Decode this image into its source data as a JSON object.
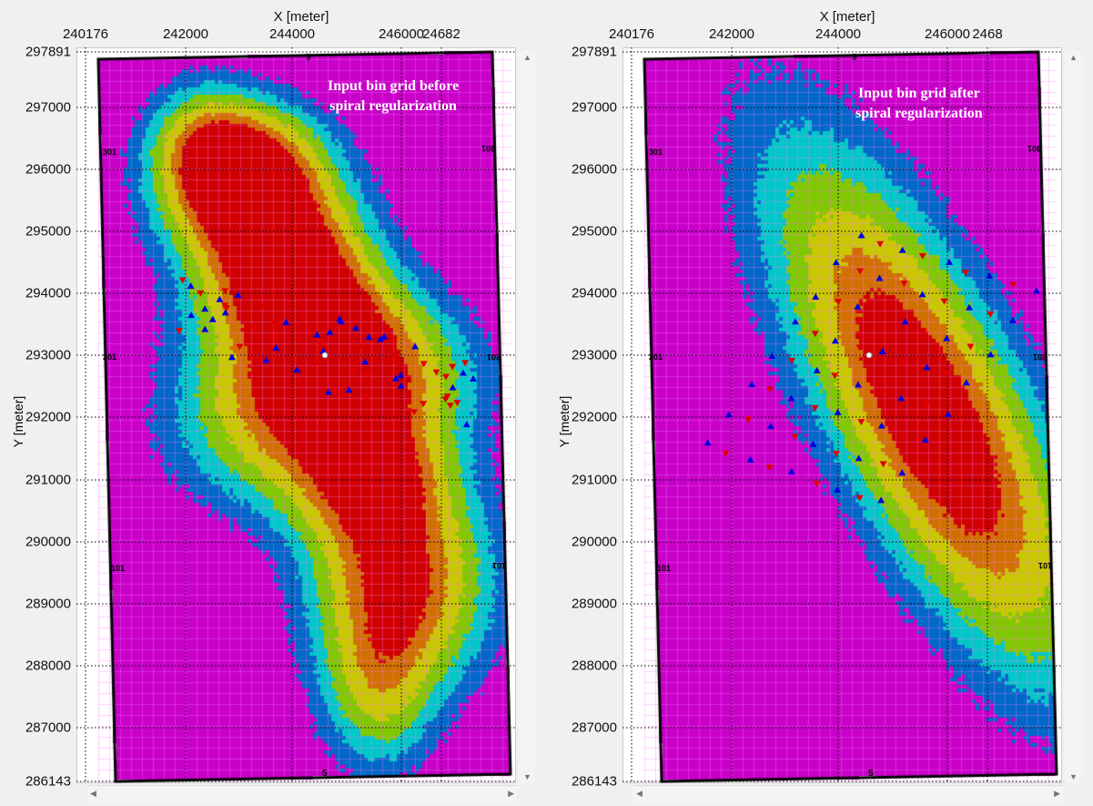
{
  "panels": [
    {
      "id": "before",
      "annotation_line1": "Input bin grid before",
      "annotation_line2": "spiral regularization"
    },
    {
      "id": "after",
      "annotation_line1": "Input bin grid after",
      "annotation_line2": "spiral regularization"
    }
  ],
  "axes": {
    "x_title": "X [meter]",
    "y_title": "Y [meter]",
    "x_ticks_left": [
      "240176",
      "242000",
      "244000",
      "246000",
      "24682"
    ],
    "x_ticks_right": [
      "240176",
      "242000",
      "244000",
      "246000",
      "2468"
    ],
    "y_ticks": [
      "297891",
      "297000",
      "296000",
      "295000",
      "294000",
      "293000",
      "292000",
      "291000",
      "290000",
      "289000",
      "288000",
      "287000",
      "286143"
    ]
  },
  "boundary_labels": {
    "left": [
      "301",
      "201",
      "101"
    ],
    "right": [
      "301",
      "201",
      "101"
    ],
    "top": "9",
    "bottom": "5"
  },
  "colors": {
    "background": "#c800c8",
    "levels": [
      "#c800c8",
      "#0068c8",
      "#00c8c8",
      "#80c800",
      "#c8c800",
      "#d07000",
      "#d00000"
    ],
    "receiver": "#0000e0",
    "source": "#e00000"
  }
}
